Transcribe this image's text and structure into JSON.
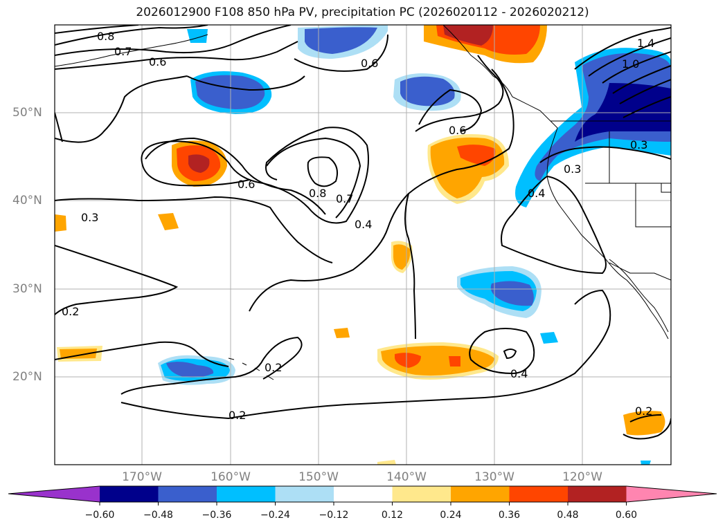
{
  "title": "2026012900 F108 850 hPa PV, precipitation PC (2026020112 - 2026020212)",
  "longitude_labels": [
    "170°W",
    "160°W",
    "150°W",
    "140°W",
    "130°W",
    "120°W"
  ],
  "latitude_labels": [
    "50°N",
    "40°N",
    "30°N",
    "20°N"
  ],
  "contour_labels": [
    "0.8",
    "0.7",
    "0.6",
    "0.6",
    "0.6",
    "0.6",
    "0.8",
    "0.7",
    "0.4",
    "0.3",
    "0.3",
    "0.3",
    "0.2",
    "0.2",
    "0.2",
    "0.4",
    "0.2",
    "0.4",
    "1.4",
    "1.0"
  ],
  "colorbar": {
    "tick_labels": [
      "−0.60",
      "−0.48",
      "−0.36",
      "−0.24",
      "−0.12",
      "0.12",
      "0.24",
      "0.36",
      "0.48",
      "0.60"
    ],
    "colors": [
      "#9932CC",
      "#00008B",
      "#3A5FCD",
      "#00BFFF",
      "#ADDFF5",
      "#FFFFFF",
      "#FFE88C",
      "#FFA500",
      "#FF4500",
      "#B22222",
      "#FF85B0"
    ]
  },
  "contour_color": "#000000",
  "coastline_color": "#000000",
  "grid_color": "#b0b0b0"
}
